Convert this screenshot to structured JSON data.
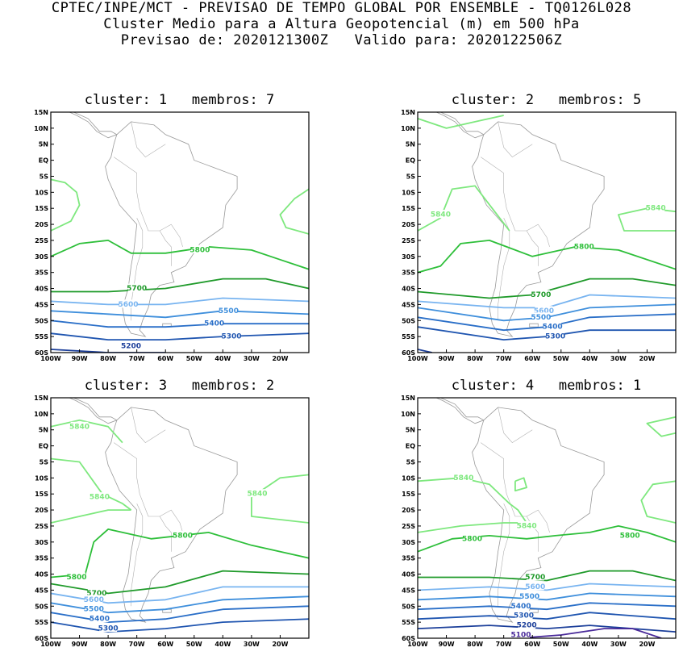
{
  "header": {
    "line1": "CPTEC/INPE/MCT - PREVISAO DE TEMPO GLOBAL POR ENSEMBLE - TQ0126L028",
    "line2": "Cluster Medio para a Altura Geopotencial (m) em 500 hPa",
    "line3": "Previsao de: 2020121300Z   Valido para: 2020122506Z"
  },
  "axes": {
    "lat_labels": [
      "15N",
      "10N",
      "5N",
      "EQ",
      "5S",
      "10S",
      "15S",
      "20S",
      "25S",
      "30S",
      "35S",
      "40S",
      "45S",
      "50S",
      "55S",
      "60S"
    ],
    "lon_labels": [
      "100W",
      "90W",
      "80W",
      "70W",
      "60W",
      "50W",
      "40W",
      "30W",
      "20W"
    ]
  },
  "levels": {
    "5840": "#7ee87e",
    "5800": "#2ebf3a",
    "5700": "#1f9a2a",
    "5600": "#78b4f0",
    "5500": "#3f8fdc",
    "5400": "#2a6fc8",
    "5300": "#1f55b0",
    "5200": "#1c3f9a",
    "5100": "#4a2a9a"
  },
  "panels": [
    {
      "title": "cluster: 1   membros: 7",
      "labels": [
        {
          "text": "5800",
          "level": "5800"
        },
        {
          "text": "5700",
          "level": "5700"
        },
        {
          "text": "5600",
          "level": "5600"
        },
        {
          "text": "5500",
          "level": "5500"
        },
        {
          "text": "5400",
          "level": "5400"
        },
        {
          "text": "5300",
          "level": "5300"
        },
        {
          "text": "5200",
          "level": "5200"
        }
      ]
    },
    {
      "title": "cluster: 2   membros: 5",
      "labels": [
        {
          "text": "5840",
          "level": "5840"
        },
        {
          "text": "5840",
          "level": "5840"
        },
        {
          "text": "5800",
          "level": "5800"
        },
        {
          "text": "5700",
          "level": "5700"
        },
        {
          "text": "5600",
          "level": "5600"
        },
        {
          "text": "5500",
          "level": "5500"
        },
        {
          "text": "5400",
          "level": "5400"
        },
        {
          "text": "5300",
          "level": "5300"
        }
      ]
    },
    {
      "title": "cluster: 3   membros: 2",
      "labels": [
        {
          "text": "5840",
          "level": "5840"
        },
        {
          "text": "5840",
          "level": "5840"
        },
        {
          "text": "5840",
          "level": "5840"
        },
        {
          "text": "5800",
          "level": "5800"
        },
        {
          "text": "5800",
          "level": "5800"
        },
        {
          "text": "5700",
          "level": "5700"
        },
        {
          "text": "5600",
          "level": "5600"
        },
        {
          "text": "5500",
          "level": "5500"
        },
        {
          "text": "5400",
          "level": "5400"
        },
        {
          "text": "5300",
          "level": "5300"
        }
      ]
    },
    {
      "title": "cluster: 4   membros: 1",
      "labels": [
        {
          "text": "5840",
          "level": "5840"
        },
        {
          "text": "5840",
          "level": "5840"
        },
        {
          "text": "5800",
          "level": "5800"
        },
        {
          "text": "5800",
          "level": "5800"
        },
        {
          "text": "5700",
          "level": "5700"
        },
        {
          "text": "5600",
          "level": "5600"
        },
        {
          "text": "5500",
          "level": "5500"
        },
        {
          "text": "5400",
          "level": "5400"
        },
        {
          "text": "5300",
          "level": "5300"
        },
        {
          "text": "5200",
          "level": "5200"
        },
        {
          "text": "5100",
          "level": "5100"
        }
      ]
    }
  ]
}
